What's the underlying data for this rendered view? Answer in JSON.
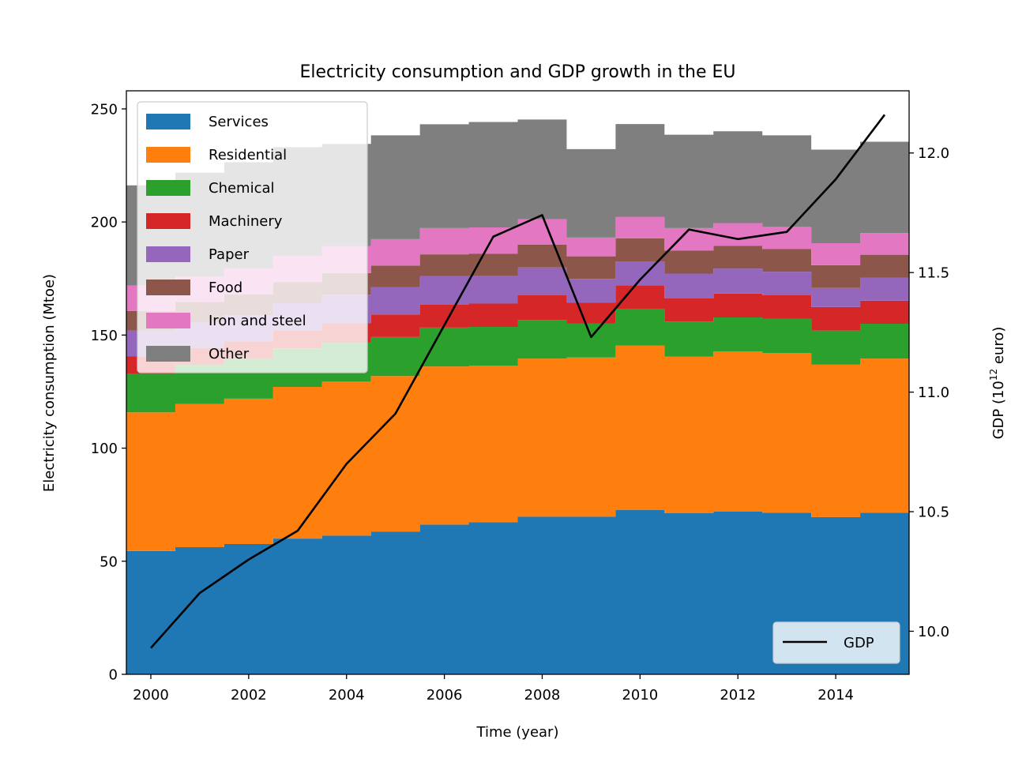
{
  "chart_data": {
    "type": "area",
    "title": "Electricity consumption and GDP growth in the EU",
    "xlabel": "Time (year)",
    "ylabel": "Electricity consumption (Mtoe)",
    "y2label": {
      "prefix": "GDP (10",
      "sup": "12",
      "suffix": " euro)"
    },
    "x": [
      2000,
      2001,
      2002,
      2003,
      2004,
      2005,
      2006,
      2007,
      2008,
      2009,
      2010,
      2011,
      2012,
      2013,
      2014,
      2015
    ],
    "xlim": [
      1999.5,
      2015.5
    ],
    "ylim": [
      0,
      258
    ],
    "y2lim": [
      9.82,
      12.26
    ],
    "xticks": [
      "2000",
      "2002",
      "2004",
      "2006",
      "2008",
      "2010",
      "2012",
      "2014"
    ],
    "yticks": [
      "0",
      "50",
      "100",
      "150",
      "200",
      "250"
    ],
    "y2ticks": [
      "10.0",
      "10.5",
      "11.0",
      "11.5",
      "12.0"
    ],
    "series": [
      {
        "name": "Services",
        "color": "#1f77b4",
        "values": [
          54.5,
          56.2,
          57.6,
          60.0,
          61.3,
          63.0,
          66.2,
          67.3,
          69.7,
          69.7,
          72.6,
          71.2,
          71.9,
          71.5,
          69.5,
          71.5
        ]
      },
      {
        "name": "Residential",
        "color": "#ff7f0e",
        "values": [
          61.3,
          63.3,
          64.3,
          67.1,
          68.1,
          68.9,
          69.9,
          69.2,
          69.9,
          70.4,
          72.7,
          69.3,
          70.8,
          70.6,
          67.4,
          68.1
        ]
      },
      {
        "name": "Chemical",
        "color": "#2ca02c",
        "values": [
          17.0,
          17.3,
          17.6,
          17.0,
          17.4,
          17.2,
          17.2,
          17.1,
          17.1,
          15.1,
          16.1,
          15.5,
          15.1,
          15.2,
          15.1,
          15.4
        ]
      },
      {
        "name": "Machinery",
        "color": "#d62728",
        "values": [
          7.7,
          7.5,
          7.7,
          8.0,
          8.4,
          10.0,
          10.2,
          10.3,
          11.0,
          9.2,
          10.6,
          10.2,
          10.5,
          10.3,
          10.4,
          10.2
        ]
      },
      {
        "name": "Paper",
        "color": "#9467bd",
        "values": [
          11.5,
          11.3,
          11.6,
          12.0,
          12.7,
          12.0,
          12.5,
          12.2,
          12.2,
          10.4,
          10.6,
          11.0,
          11.1,
          10.4,
          8.4,
          10.1
        ]
      },
      {
        "name": "Food",
        "color": "#8c564b",
        "values": [
          8.7,
          9.0,
          9.2,
          9.3,
          9.5,
          9.6,
          9.7,
          9.8,
          10.0,
          10.0,
          10.2,
          10.1,
          10.0,
          10.0,
          10.1,
          10.2
        ]
      },
      {
        "name": "Iron and steel",
        "color": "#e377c2",
        "values": [
          11.2,
          11.3,
          11.5,
          11.8,
          12.0,
          11.7,
          11.6,
          11.7,
          11.3,
          8.3,
          9.5,
          10.0,
          10.1,
          9.8,
          9.7,
          9.6
        ]
      },
      {
        "name": "Other",
        "color": "#7f7f7f",
        "values": [
          44.3,
          45.9,
          46.9,
          47.9,
          45.1,
          45.9,
          45.9,
          46.6,
          44.1,
          39.1,
          41.0,
          41.3,
          40.6,
          40.5,
          41.4,
          40.4
        ]
      }
    ],
    "gdp": {
      "name": "GDP",
      "color": "#000000",
      "values": [
        9.93,
        10.16,
        10.3,
        10.42,
        10.7,
        10.91,
        11.28,
        11.65,
        11.74,
        11.23,
        11.47,
        11.68,
        11.64,
        11.67,
        11.89,
        12.16
      ]
    },
    "legend_placement": "upper-left",
    "legend2_placement": "lower-right",
    "grid": false
  }
}
